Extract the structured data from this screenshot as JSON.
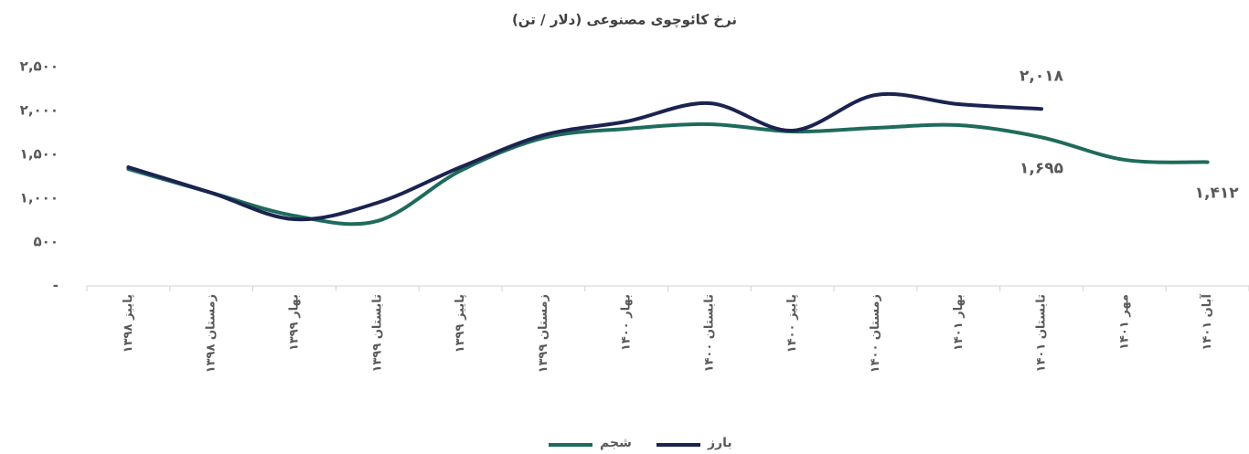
{
  "chart_data": {
    "type": "line",
    "title": "نرخ کائوچوی مصنوعی (دلار / تن)",
    "categories": [
      "پاییز ۱۳۹۸",
      "زمستان ۱۳۹۸",
      "بهار ۱۳۹۹",
      "تابستان ۱۳۹۹",
      "پاییز ۱۳۹۹",
      "زمستان ۱۳۹۹",
      "بهار ۱۴۰۰",
      "تابستان ۱۴۰۰",
      "پاییز ۱۴۰۰",
      "زمستان ۱۴۰۰",
      "بهار ۱۴۰۱",
      "تابستان ۱۴۰۱",
      "مهر ۱۴۰۱",
      "آبان ۱۴۰۱"
    ],
    "series": [
      {
        "name": "شجم",
        "color": "#1f6b5b",
        "values": [
          1333,
          1062,
          800,
          740,
          1313,
          1688,
          1792,
          1844,
          1760,
          1802,
          1833,
          1695,
          1438,
          1412
        ],
        "value_labels": [
          null,
          null,
          null,
          null,
          null,
          null,
          null,
          null,
          null,
          null,
          null,
          "۱,۶۹۵",
          null,
          "۱,۴۱۲"
        ]
      },
      {
        "name": "بارز",
        "color": "#1b2350",
        "values": [
          1354,
          1062,
          760,
          948,
          1354,
          1719,
          1875,
          2083,
          1771,
          2177,
          2073,
          2018,
          null,
          null
        ],
        "value_labels": [
          null,
          null,
          null,
          null,
          null,
          null,
          null,
          null,
          null,
          null,
          null,
          "۲,۰۱۸",
          null,
          null
        ]
      }
    ],
    "ylim": [
      0,
      2500
    ],
    "yticks": [
      {
        "value": 0,
        "label": "-"
      },
      {
        "value": 500,
        "label": "۵۰۰"
      },
      {
        "value": 1000,
        "label": "۱,۰۰۰"
      },
      {
        "value": 1500,
        "label": "۱,۵۰۰"
      },
      {
        "value": 2000,
        "label": "۲,۰۰۰"
      },
      {
        "value": 2500,
        "label": "۲,۵۰۰"
      }
    ],
    "grid": false,
    "legend": "bottom"
  }
}
